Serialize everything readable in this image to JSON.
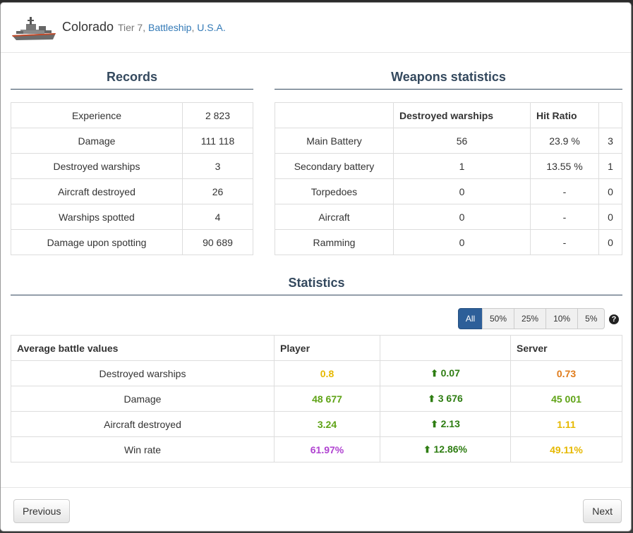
{
  "ship": {
    "name": "Colorado",
    "tier": "Tier 7,",
    "type": "Battleship",
    "separator": ",",
    "nation": "U.S.A."
  },
  "records": {
    "title": "Records",
    "rows": [
      {
        "label": "Experience",
        "value": "2 823"
      },
      {
        "label": "Damage",
        "value": "111 118"
      },
      {
        "label": "Destroyed warships",
        "value": "3"
      },
      {
        "label": "Aircraft destroyed",
        "value": "26"
      },
      {
        "label": "Warships spotted",
        "value": "4"
      },
      {
        "label": "Damage upon spotting",
        "value": "90 689"
      }
    ]
  },
  "weapons": {
    "title": "Weapons statistics",
    "headers": [
      "",
      "Destroyed warships",
      "Hit Ratio",
      ""
    ],
    "rows": [
      {
        "name": "Main Battery",
        "destroyed": "56",
        "hit_ratio": "23.9 %",
        "extra": "3"
      },
      {
        "name": "Secondary battery",
        "destroyed": "1",
        "hit_ratio": "13.55 %",
        "extra": "1"
      },
      {
        "name": "Torpedoes",
        "destroyed": "0",
        "hit_ratio": "-",
        "extra": "0"
      },
      {
        "name": "Aircraft",
        "destroyed": "0",
        "hit_ratio": "-",
        "extra": "0"
      },
      {
        "name": "Ramming",
        "destroyed": "0",
        "hit_ratio": "-",
        "extra": "0"
      }
    ]
  },
  "statistics": {
    "title": "Statistics",
    "filters": [
      "All",
      "50%",
      "25%",
      "10%",
      "5%"
    ],
    "active_filter": "All",
    "help": "?",
    "headers": [
      "Average battle values",
      "Player",
      "",
      "Server"
    ],
    "arrow_icon": "up-arrow-icon",
    "rows": [
      {
        "label": "Destroyed warships",
        "player": "0.8",
        "player_color": "#e6b800",
        "diff": "0.07",
        "server": "0.73",
        "server_color": "#e07b1a"
      },
      {
        "label": "Damage",
        "player": "48 677",
        "player_color": "#5fa316",
        "diff": "3 676",
        "server": "45 001",
        "server_color": "#5fa316"
      },
      {
        "label": "Aircraft destroyed",
        "player": "3.24",
        "player_color": "#5fa316",
        "diff": "2.13",
        "server": "1.11",
        "server_color": "#e6b800"
      },
      {
        "label": "Win rate",
        "player": "61.97%",
        "player_color": "#b043d1",
        "diff": "12.86%",
        "server": "49.11%",
        "server_color": "#e6b800"
      }
    ],
    "diff_color": "#2e7d12"
  },
  "footer": {
    "previous": "Previous",
    "next": "Next"
  }
}
